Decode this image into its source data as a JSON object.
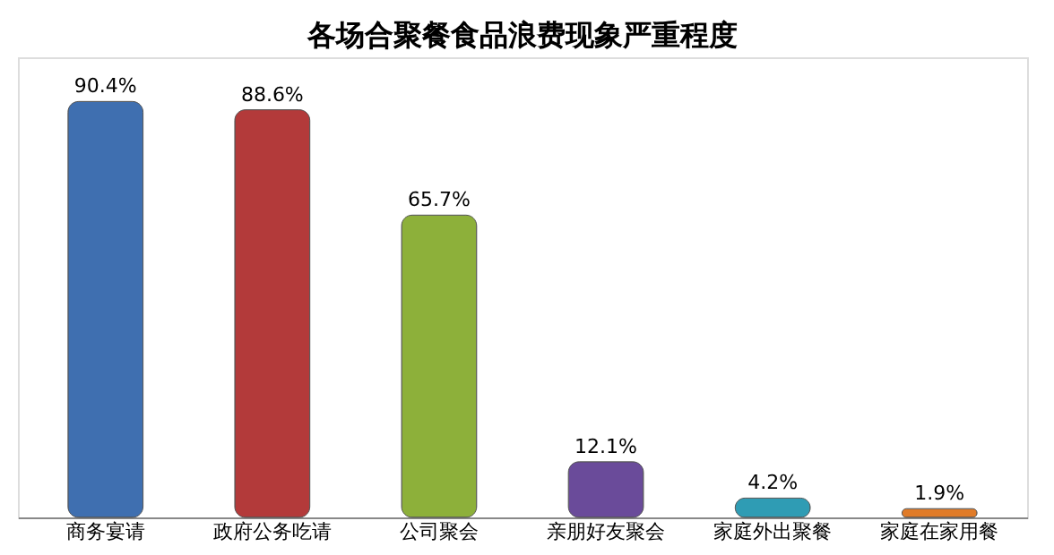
{
  "chart_data": {
    "type": "bar",
    "title": "各场合聚餐食品浪费现象严重程度",
    "categories": [
      "商务宴请",
      "政府公务吃请",
      "公司聚会",
      "亲朋好友聚会",
      "家庭外出聚餐",
      "家庭在家用餐"
    ],
    "values": [
      90.4,
      88.6,
      65.7,
      12.1,
      4.2,
      1.9
    ],
    "value_labels": [
      "90.4%",
      "88.6%",
      "65.7%",
      "12.1%",
      "4.2%",
      "1.9%"
    ],
    "colors": [
      "#3f6fb0",
      "#b33a3a",
      "#8db03a",
      "#6a4b9a",
      "#2f9cb4",
      "#e07b28"
    ]
  }
}
